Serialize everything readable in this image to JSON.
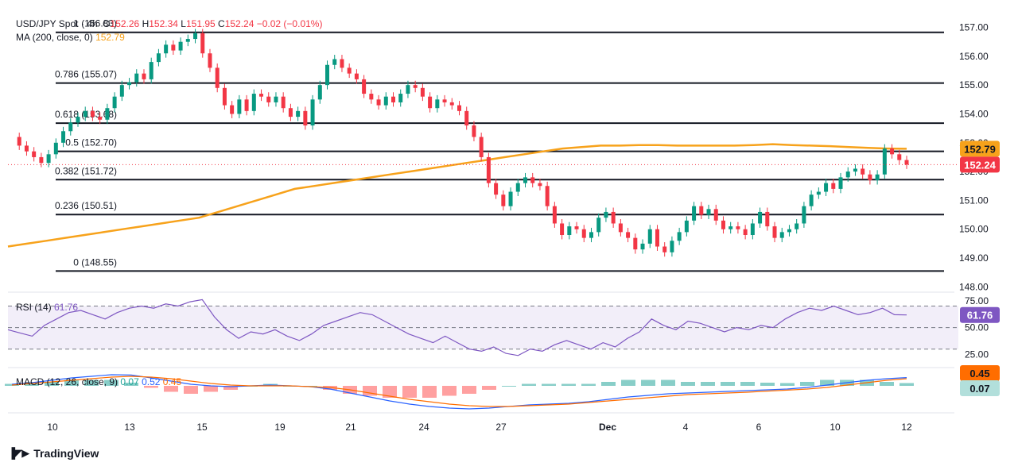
{
  "header": {
    "symbol": "USD/JPY Spot · 4h",
    "o_label": "O",
    "o": "152.26",
    "h_label": "H",
    "h": "152.34",
    "l_label": "L",
    "l": "151.95",
    "c_label": "C",
    "c": "152.24",
    "change": "−0.02 (−0.01%)",
    "ma_label": "MA (200, close, 0)",
    "ma_value": "152.79",
    "rsi_label": "RSI (14)",
    "rsi_value": "61.76",
    "macd_label": "MACD (12, 26, close, 9)",
    "macd_hist": "0.07",
    "macd_line": "0.52",
    "macd_signal": "0.45"
  },
  "brand": {
    "name": "TradingView",
    "logo": "tradingview-logo"
  },
  "colors": {
    "up": "#089981",
    "down": "#f23645",
    "ma": "#f7a21b",
    "rsi": "#7e57c2",
    "macd": "#2962ff",
    "signal": "#ff6d00",
    "fib": "#131722"
  },
  "chart_data": [
    {
      "type": "candlestick",
      "ylim": [
        147.9,
        157.4
      ],
      "y_ticks": [
        157.0,
        156.0,
        155.0,
        154.0,
        153.0,
        152.0,
        151.0,
        150.0,
        149.0,
        148.0
      ],
      "x_ticks": [
        "10",
        "13",
        "15",
        "19",
        "21",
        "24",
        "27",
        "Dec",
        "4",
        "6",
        "10",
        "12"
      ],
      "fib_levels": [
        {
          "label": "1 (156.83)",
          "ratio": 1,
          "value": 156.83
        },
        {
          "label": "0.786 (155.07)",
          "ratio": 0.786,
          "value": 155.07
        },
        {
          "label": "0.618 (153.68)",
          "ratio": 0.618,
          "value": 153.68
        },
        {
          "label": "0.5 (152.70)",
          "ratio": 0.5,
          "value": 152.7
        },
        {
          "label": "0.382 (151.72)",
          "ratio": 0.382,
          "value": 151.72
        },
        {
          "label": "0.236 (150.51)",
          "ratio": 0.236,
          "value": 150.51
        },
        {
          "label": "0 (148.55)",
          "ratio": 0,
          "value": 148.55
        }
      ],
      "last_price": 152.24,
      "ma_last": 152.79,
      "close_path": [
        153.2,
        152.9,
        152.7,
        152.5,
        152.3,
        152.6,
        153.0,
        153.4,
        153.7,
        153.9,
        154.1,
        153.9,
        153.8,
        154.2,
        154.6,
        155.0,
        155.1,
        155.4,
        155.2,
        155.8,
        156.1,
        156.4,
        156.2,
        156.5,
        156.6,
        156.8,
        156.1,
        155.6,
        154.9,
        154.3,
        154.0,
        154.5,
        154.1,
        154.7,
        154.6,
        154.4,
        154.6,
        154.2,
        153.9,
        154.1,
        153.6,
        154.5,
        155.0,
        155.7,
        155.9,
        155.6,
        155.4,
        155.2,
        154.7,
        154.5,
        154.3,
        154.6,
        154.4,
        154.7,
        155.0,
        154.9,
        154.6,
        154.2,
        154.5,
        154.4,
        154.3,
        154.1,
        153.6,
        153.2,
        152.5,
        151.6,
        151.2,
        150.8,
        151.3,
        151.6,
        151.8,
        151.6,
        151.5,
        150.8,
        150.2,
        149.8,
        150.1,
        150.0,
        149.7,
        149.9,
        150.4,
        150.6,
        150.2,
        149.9,
        149.7,
        149.3,
        149.5,
        150.0,
        149.4,
        149.2,
        149.6,
        149.9,
        150.3,
        150.8,
        150.5,
        150.7,
        150.3,
        150.0,
        150.1,
        150.0,
        149.8,
        150.2,
        150.6,
        150.1,
        149.7,
        149.9,
        150.0,
        150.2,
        150.8,
        151.2,
        151.3,
        151.6,
        151.4,
        151.8,
        152.0,
        152.1,
        151.9,
        151.7,
        151.9,
        152.8,
        152.6,
        152.4,
        152.24
      ],
      "ma_path": [
        149.4,
        149.5,
        149.6,
        149.7,
        149.8,
        149.9,
        150.0,
        150.1,
        150.2,
        150.3,
        150.4,
        150.6,
        150.8,
        151.0,
        151.2,
        151.4,
        151.5,
        151.6,
        151.7,
        151.8,
        151.9,
        152.0,
        152.1,
        152.2,
        152.3,
        152.4,
        152.5,
        152.6,
        152.7,
        152.8,
        152.85,
        152.9,
        152.9,
        152.92,
        152.92,
        152.9,
        152.9,
        152.9,
        152.9,
        152.92,
        152.95,
        152.92,
        152.9,
        152.88,
        152.85,
        152.82,
        152.8,
        152.79
      ]
    },
    {
      "type": "line",
      "name": "RSI",
      "ylim": [
        15,
        80
      ],
      "y_ticks": [
        75.0,
        50.0,
        25.0
      ],
      "bands": [
        70,
        50,
        30
      ],
      "last": 61.76,
      "values": [
        48,
        45,
        42,
        52,
        58,
        64,
        66,
        62,
        58,
        64,
        68,
        70,
        68,
        72,
        70,
        74,
        76,
        60,
        48,
        40,
        46,
        44,
        48,
        42,
        38,
        44,
        52,
        56,
        60,
        64,
        62,
        56,
        50,
        44,
        40,
        36,
        42,
        36,
        30,
        28,
        32,
        26,
        24,
        30,
        28,
        34,
        38,
        34,
        30,
        36,
        32,
        40,
        46,
        58,
        52,
        48,
        56,
        54,
        50,
        46,
        50,
        48,
        52,
        50,
        58,
        64,
        68,
        66,
        70,
        66,
        62,
        64,
        68,
        62,
        61.76
      ]
    },
    {
      "type": "line",
      "name": "MACD",
      "ylim": [
        -1.6,
        1.0
      ],
      "last_line": 0.52,
      "last_signal": 0.45,
      "last_hist": 0.07,
      "macd": [
        0.1,
        0.2,
        0.35,
        0.5,
        0.6,
        0.7,
        0.68,
        0.5,
        0.3,
        0.1,
        0.0,
        -0.05,
        0.0,
        0.05,
        0.0,
        -0.05,
        -0.2,
        -0.45,
        -0.7,
        -0.95,
        -1.15,
        -1.3,
        -1.4,
        -1.45,
        -1.4,
        -1.3,
        -1.2,
        -1.15,
        -1.1,
        -1.0,
        -0.85,
        -0.7,
        -0.6,
        -0.5,
        -0.45,
        -0.4,
        -0.35,
        -0.3,
        -0.25,
        -0.2,
        -0.1,
        0.05,
        0.2,
        0.35,
        0.45,
        0.52
      ],
      "signal": [
        0.05,
        0.15,
        0.25,
        0.35,
        0.45,
        0.55,
        0.6,
        0.55,
        0.45,
        0.3,
        0.15,
        0.05,
        0.0,
        0.0,
        0.0,
        -0.05,
        -0.1,
        -0.25,
        -0.45,
        -0.65,
        -0.85,
        -1.0,
        -1.15,
        -1.25,
        -1.3,
        -1.3,
        -1.25,
        -1.2,
        -1.15,
        -1.05,
        -0.95,
        -0.85,
        -0.75,
        -0.65,
        -0.55,
        -0.5,
        -0.45,
        -0.4,
        -0.33,
        -0.27,
        -0.2,
        -0.1,
        0.05,
        0.2,
        0.35,
        0.45
      ]
    }
  ]
}
